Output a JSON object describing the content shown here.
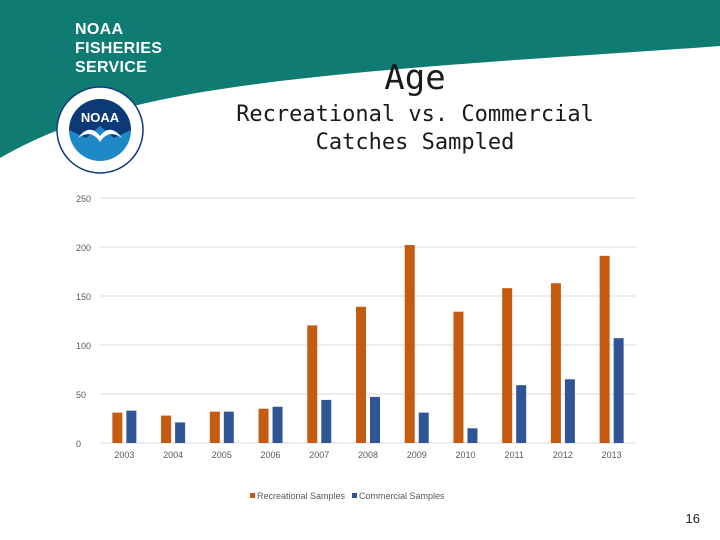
{
  "brand": {
    "line1": "NOAA",
    "line2": "FISHERIES",
    "line3": "SERVICE",
    "seal_text": "NOAA",
    "colors": {
      "teal": "#0f7b73",
      "seal_blue": "#1e88c7",
      "seal_navy": "#0c3a76"
    }
  },
  "slide": {
    "title": "Age",
    "subtitle_line1": "Recreational vs. Commercial",
    "subtitle_line2": "Catches Sampled",
    "number": "16"
  },
  "chart_data": {
    "type": "bar",
    "categories": [
      "2003",
      "2004",
      "2005",
      "2006",
      "2007",
      "2008",
      "2009",
      "2010",
      "2011",
      "2012",
      "2013"
    ],
    "series": [
      {
        "name": "Recreational Samples",
        "color": "#c55a11",
        "values": [
          31,
          28,
          32,
          35,
          120,
          139,
          202,
          134,
          158,
          163,
          191
        ]
      },
      {
        "name": "Commercial Samples",
        "color": "#2f5597",
        "values": [
          33,
          21,
          32,
          37,
          44,
          47,
          31,
          15,
          59,
          65,
          107
        ]
      }
    ],
    "ylim": [
      0,
      250
    ],
    "yticks": [
      0,
      50,
      100,
      150,
      200,
      250
    ],
    "grid": true,
    "legend": "bottom",
    "title": "",
    "xlabel": "",
    "ylabel": ""
  }
}
